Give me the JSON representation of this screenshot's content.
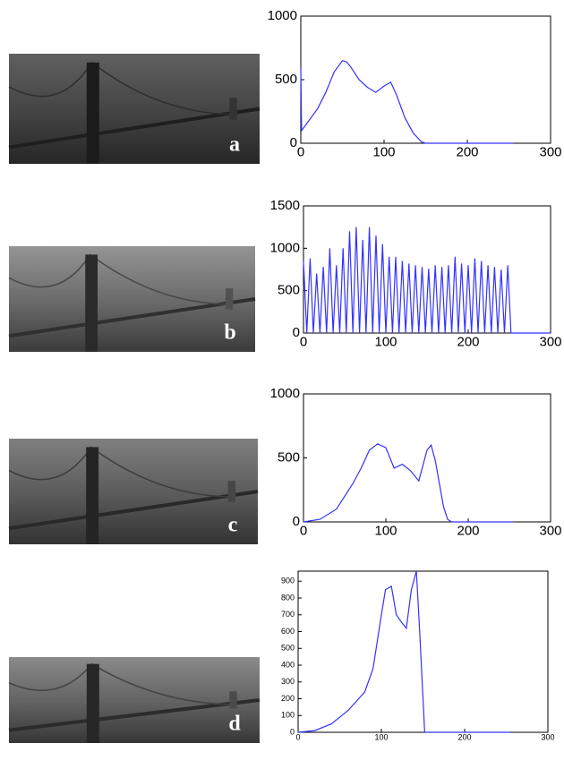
{
  "chart_data": [
    {
      "type": "line",
      "panel_label": "a",
      "color": "#3333ff",
      "x": [
        0,
        1,
        10,
        20,
        30,
        40,
        50,
        55,
        60,
        70,
        80,
        90,
        100,
        108,
        115,
        125,
        135,
        145,
        150,
        200,
        255
      ],
      "values": [
        590,
        100,
        180,
        270,
        400,
        560,
        650,
        640,
        600,
        500,
        440,
        400,
        450,
        480,
        380,
        200,
        80,
        10,
        0,
        0,
        0
      ],
      "xlim": [
        0,
        300
      ],
      "ylim": [
        0,
        1000
      ],
      "xticks": [
        0,
        100,
        200,
        300
      ],
      "yticks": [
        0,
        500,
        1000
      ]
    },
    {
      "type": "line",
      "panel_label": "b",
      "color": "#3333ff",
      "x": [
        0,
        4,
        8,
        12,
        16,
        20,
        24,
        28,
        32,
        36,
        40,
        44,
        48,
        52,
        56,
        60,
        64,
        68,
        72,
        76,
        80,
        84,
        88,
        92,
        96,
        100,
        104,
        108,
        112,
        116,
        120,
        124,
        128,
        132,
        136,
        140,
        144,
        148,
        152,
        156,
        160,
        164,
        168,
        172,
        176,
        180,
        184,
        188,
        192,
        196,
        200,
        204,
        208,
        212,
        216,
        220,
        224,
        228,
        232,
        236,
        240,
        244,
        248,
        252,
        300
      ],
      "values": [
        850,
        0,
        880,
        0,
        700,
        0,
        780,
        0,
        1000,
        0,
        800,
        0,
        1000,
        0,
        1200,
        0,
        1250,
        0,
        1100,
        0,
        1250,
        0,
        1150,
        0,
        1050,
        0,
        900,
        0,
        900,
        0,
        850,
        0,
        820,
        0,
        800,
        0,
        780,
        0,
        760,
        0,
        800,
        0,
        780,
        0,
        800,
        0,
        900,
        0,
        820,
        0,
        800,
        0,
        880,
        0,
        850,
        0,
        800,
        0,
        780,
        0,
        750,
        0,
        800,
        0,
        0
      ],
      "xlim": [
        0,
        300
      ],
      "ylim": [
        0,
        1500
      ],
      "xticks": [
        0,
        100,
        200,
        300
      ],
      "yticks": [
        0,
        500,
        1000,
        1500
      ]
    },
    {
      "type": "line",
      "panel_label": "c",
      "color": "#3333ff",
      "x": [
        0,
        20,
        40,
        60,
        70,
        80,
        90,
        100,
        110,
        120,
        130,
        140,
        150,
        155,
        160,
        165,
        170,
        175,
        180,
        255
      ],
      "values": [
        0,
        20,
        100,
        300,
        420,
        560,
        610,
        580,
        420,
        450,
        400,
        320,
        560,
        600,
        480,
        300,
        120,
        20,
        0,
        0
      ],
      "xlim": [
        0,
        300
      ],
      "ylim": [
        0,
        1000
      ],
      "xticks": [
        0,
        100,
        200,
        300
      ],
      "yticks": [
        0,
        500,
        1000
      ]
    },
    {
      "type": "line",
      "panel_label": "d",
      "color": "#3333ff",
      "x": [
        0,
        20,
        40,
        60,
        80,
        90,
        100,
        105,
        112,
        118,
        125,
        130,
        136,
        142,
        146,
        150,
        152,
        255
      ],
      "values": [
        0,
        10,
        50,
        130,
        240,
        380,
        700,
        850,
        870,
        700,
        650,
        620,
        850,
        960,
        600,
        200,
        0,
        0
      ],
      "xlim": [
        0,
        300
      ],
      "ylim": [
        0,
        960
      ],
      "xticks": [
        0,
        100,
        200,
        300
      ],
      "yticks": [
        0,
        100,
        200,
        300,
        400,
        500,
        600,
        700,
        800,
        900
      ]
    }
  ]
}
